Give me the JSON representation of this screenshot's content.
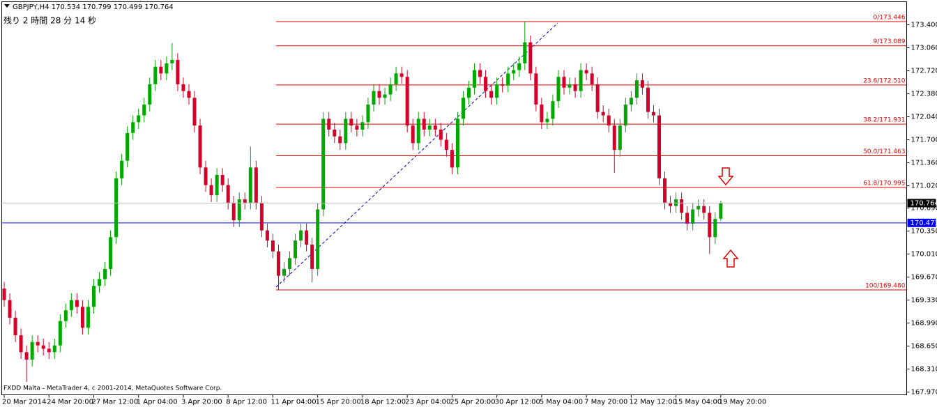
{
  "chart_data": {
    "type": "candlestick",
    "symbol": "GBPJPY,H4",
    "timer": "残り 2 時間 28 分 14 秒",
    "footer": "FXDD Malta - MetaTrader 4, c 2001-2014, MetaQuotes Software Corp.",
    "colors": {
      "up": "#00a800",
      "down": "#d4002a",
      "fib": "#e00000",
      "price_line": "#c0c0c0"
    },
    "categories": [
      "20 Mar 2014",
      null,
      null,
      null,
      null,
      null,
      null,
      null,
      "24 Mar 20:00",
      null,
      null,
      null,
      null,
      null,
      null,
      null,
      "27 Mar 12:00",
      null,
      null,
      null,
      null,
      null,
      null,
      null,
      "1 Apr 04:00",
      null,
      null,
      null,
      null,
      null,
      null,
      null,
      "3 Apr 20:00",
      null,
      null,
      null,
      null,
      null,
      null,
      null,
      "8 Apr 12:00",
      null,
      null,
      null,
      null,
      null,
      null,
      null,
      "11 Apr 04:00",
      null,
      null,
      null,
      null,
      null,
      null,
      null,
      "15 Apr 20:00",
      null,
      null,
      null,
      null,
      null,
      null,
      null,
      "18 Apr 12:00",
      null,
      null,
      null,
      null,
      null,
      null,
      null,
      "23 Apr 04:00",
      null,
      null,
      null,
      null,
      null,
      null,
      null,
      "25 Apr 20:00",
      null,
      null,
      null,
      null,
      null,
      null,
      null,
      "30 Apr 12:00",
      null,
      null,
      null,
      null,
      null,
      null,
      null,
      "5 May 04:00",
      null,
      null,
      null,
      null,
      null,
      null,
      null,
      "7 May 20:00",
      null,
      null,
      null,
      null,
      null,
      null,
      null,
      "12 May 12:00",
      null,
      null,
      null,
      null,
      null,
      null,
      null,
      "15 May 04:00",
      null,
      null,
      null,
      null,
      null,
      null,
      null,
      "19 May 20:00"
    ],
    "open": [
      169.5,
      169.33,
      169.07,
      168.81,
      168.56,
      168.45,
      168.71,
      168.66,
      168.61,
      168.56,
      168.66,
      169.02,
      169.18,
      169.33,
      169.23,
      168.92,
      169.23,
      169.54,
      169.64,
      169.79,
      170.26,
      171.13,
      171.39,
      171.8,
      171.96,
      172.06,
      172.22,
      172.52,
      172.78,
      172.68,
      172.83,
      172.88,
      172.52,
      172.42,
      172.32,
      171.91,
      171.29,
      171.03,
      170.88,
      171.18,
      171.03,
      170.77,
      170.51,
      170.82,
      170.77,
      171.29,
      170.77,
      170.36,
      170.21,
      170.05,
      169.69,
      169.79,
      169.95,
      170.21,
      170.36,
      170.15,
      169.79,
      170.67,
      172.01,
      171.85,
      171.75,
      171.65,
      172.01,
      171.91,
      171.85,
      171.96,
      172.22,
      172.42,
      172.32,
      172.37,
      172.52,
      172.68,
      172.63,
      171.91,
      171.65,
      172.01,
      171.85,
      171.91,
      171.85,
      171.7,
      171.55,
      171.29,
      172.01,
      172.32,
      172.47,
      172.73,
      172.63,
      172.42,
      172.32,
      172.52,
      172.5,
      172.68,
      172.73,
      172.83,
      173.14,
      172.68,
      172.22,
      171.96,
      172.01,
      172.27,
      172.63,
      172.47,
      172.52,
      172.42,
      172.73,
      172.68,
      172.52,
      172.11,
      172.06,
      171.91,
      171.55,
      171.91,
      172.22,
      172.32,
      172.58,
      172.47,
      172.11,
      172.06,
      171.13,
      170.77,
      170.72,
      170.82,
      170.62,
      170.46,
      170.67,
      170.72,
      170.62,
      170.26,
      170.534
    ],
    "high": [
      169.6,
      169.43,
      169.17,
      168.91,
      168.66,
      168.81,
      168.81,
      168.76,
      168.71,
      168.76,
      169.12,
      169.28,
      169.43,
      169.43,
      169.33,
      169.33,
      169.64,
      169.74,
      169.89,
      170.36,
      171.23,
      171.49,
      171.9,
      172.06,
      172.16,
      172.32,
      172.62,
      172.88,
      172.88,
      172.93,
      173.13,
      172.98,
      172.62,
      172.52,
      172.42,
      172.01,
      171.39,
      171.13,
      171.28,
      171.28,
      171.13,
      170.87,
      170.92,
      170.92,
      171.6,
      171.39,
      170.87,
      170.46,
      170.31,
      170.15,
      169.89,
      170.05,
      170.31,
      170.46,
      170.46,
      170.25,
      170.77,
      172.11,
      172.11,
      171.95,
      171.85,
      172.11,
      172.11,
      172.01,
      172.06,
      172.32,
      172.52,
      172.52,
      172.47,
      172.62,
      172.78,
      172.78,
      172.73,
      172.01,
      172.11,
      172.11,
      172.01,
      172.01,
      171.95,
      171.8,
      171.65,
      172.11,
      172.42,
      172.57,
      172.83,
      172.83,
      172.73,
      172.52,
      172.62,
      172.62,
      172.78,
      172.83,
      172.93,
      173.446,
      173.24,
      172.78,
      172.32,
      172.11,
      172.37,
      172.73,
      172.73,
      172.62,
      172.62,
      172.83,
      172.83,
      172.78,
      172.62,
      172.21,
      172.16,
      172.01,
      172.01,
      172.32,
      172.42,
      172.68,
      172.68,
      172.57,
      172.21,
      172.16,
      171.23,
      170.87,
      170.92,
      170.92,
      170.72,
      170.77,
      170.82,
      170.82,
      170.72,
      170.63,
      170.799
    ],
    "low": [
      169.23,
      168.97,
      168.71,
      168.46,
      168.12,
      168.35,
      168.56,
      168.51,
      168.46,
      168.46,
      168.56,
      168.92,
      169.08,
      169.13,
      168.82,
      168.82,
      169.13,
      169.44,
      169.54,
      169.69,
      170.16,
      171.03,
      171.29,
      171.7,
      171.86,
      171.96,
      172.12,
      172.42,
      172.58,
      172.58,
      172.73,
      172.42,
      172.32,
      172.22,
      171.81,
      171.19,
      170.93,
      170.78,
      170.78,
      170.93,
      170.67,
      170.41,
      170.41,
      170.67,
      170.67,
      170.67,
      170.26,
      170.11,
      169.95,
      169.48,
      169.59,
      169.69,
      169.85,
      170.11,
      170.05,
      169.59,
      169.69,
      170.57,
      171.75,
      171.65,
      171.55,
      171.55,
      171.81,
      171.75,
      171.75,
      171.86,
      172.12,
      172.22,
      172.22,
      172.27,
      172.42,
      172.53,
      171.81,
      171.55,
      171.55,
      171.75,
      171.75,
      171.75,
      171.6,
      171.45,
      171.19,
      171.19,
      171.91,
      172.22,
      172.37,
      172.53,
      172.32,
      172.22,
      172.22,
      172.4,
      172.4,
      172.58,
      172.63,
      172.73,
      172.58,
      172.12,
      171.86,
      171.86,
      171.91,
      172.17,
      172.37,
      172.37,
      172.32,
      172.32,
      172.58,
      172.42,
      172.01,
      171.96,
      171.81,
      171.21,
      171.45,
      171.81,
      172.12,
      172.22,
      172.37,
      172.01,
      171.96,
      171.03,
      170.67,
      170.62,
      170.62,
      170.52,
      170.36,
      170.36,
      170.57,
      170.52,
      170.01,
      170.16,
      170.499
    ],
    "close": [
      169.33,
      169.07,
      168.81,
      168.56,
      168.45,
      168.71,
      168.66,
      168.61,
      168.56,
      168.66,
      169.02,
      169.18,
      169.33,
      169.23,
      168.92,
      169.23,
      169.54,
      169.64,
      169.79,
      170.26,
      171.13,
      171.39,
      171.8,
      171.96,
      172.06,
      172.22,
      172.52,
      172.78,
      172.68,
      172.83,
      172.88,
      172.52,
      172.42,
      172.32,
      171.91,
      171.29,
      171.03,
      170.88,
      171.18,
      171.03,
      170.77,
      170.51,
      170.82,
      170.77,
      171.29,
      170.77,
      170.36,
      170.21,
      170.05,
      169.69,
      169.79,
      169.95,
      170.21,
      170.36,
      170.15,
      169.79,
      170.67,
      172.01,
      171.85,
      171.75,
      171.65,
      172.01,
      171.91,
      171.85,
      171.96,
      172.22,
      172.42,
      172.32,
      172.37,
      172.52,
      172.68,
      172.63,
      171.91,
      171.65,
      172.01,
      171.85,
      171.91,
      171.85,
      171.7,
      171.55,
      171.29,
      172.01,
      172.32,
      172.47,
      172.73,
      172.63,
      172.42,
      172.32,
      172.52,
      172.5,
      172.68,
      172.73,
      172.83,
      173.14,
      172.68,
      172.22,
      171.96,
      172.01,
      172.27,
      172.63,
      172.47,
      172.52,
      172.42,
      172.73,
      172.68,
      172.52,
      172.11,
      172.06,
      171.91,
      171.55,
      171.91,
      172.22,
      172.32,
      172.58,
      172.47,
      172.11,
      172.06,
      171.13,
      170.77,
      170.72,
      170.82,
      170.62,
      170.46,
      170.67,
      170.72,
      170.62,
      170.26,
      170.53,
      170.764
    ],
    "ylim": [
      167.93,
      173.74
    ],
    "yticks": [
      {
        "value": 173.4,
        "label": "173.400"
      },
      {
        "value": 173.06,
        "label": "173.060"
      },
      {
        "value": 172.72,
        "label": "172.720"
      },
      {
        "value": 172.38,
        "label": "172.380"
      },
      {
        "value": 172.04,
        "label": "172.040"
      },
      {
        "value": 171.7,
        "label": "171.700"
      },
      {
        "value": 171.36,
        "label": "171.360"
      },
      {
        "value": 171.02,
        "label": "171.020"
      },
      {
        "value": 170.69,
        "label": "170.690"
      },
      {
        "value": 170.35,
        "label": "170.350"
      },
      {
        "value": 170.01,
        "label": "170.010"
      },
      {
        "value": 169.67,
        "label": "169.670"
      },
      {
        "value": 169.33,
        "label": "169.330"
      },
      {
        "value": 168.99,
        "label": "168.990"
      },
      {
        "value": 168.65,
        "label": "168.650"
      },
      {
        "value": 168.31,
        "label": "168.310"
      },
      {
        "value": 167.97,
        "label": "167.970"
      }
    ],
    "fib_levels": [
      {
        "value": 173.446,
        "label": "0/173.446"
      },
      {
        "value": 173.089,
        "label": "9/173.089"
      },
      {
        "value": 172.51,
        "label": "23.6/172.510"
      },
      {
        "value": 171.931,
        "label": "38.2/171.931"
      },
      {
        "value": 171.463,
        "label": "50.0/171.463"
      },
      {
        "value": 170.995,
        "label": "61.8/170.995"
      },
      {
        "value": 169.48,
        "label": "100/169.480"
      }
    ],
    "hlines": [
      {
        "value": 170.471,
        "color": "#0000ff"
      }
    ]
  }
}
